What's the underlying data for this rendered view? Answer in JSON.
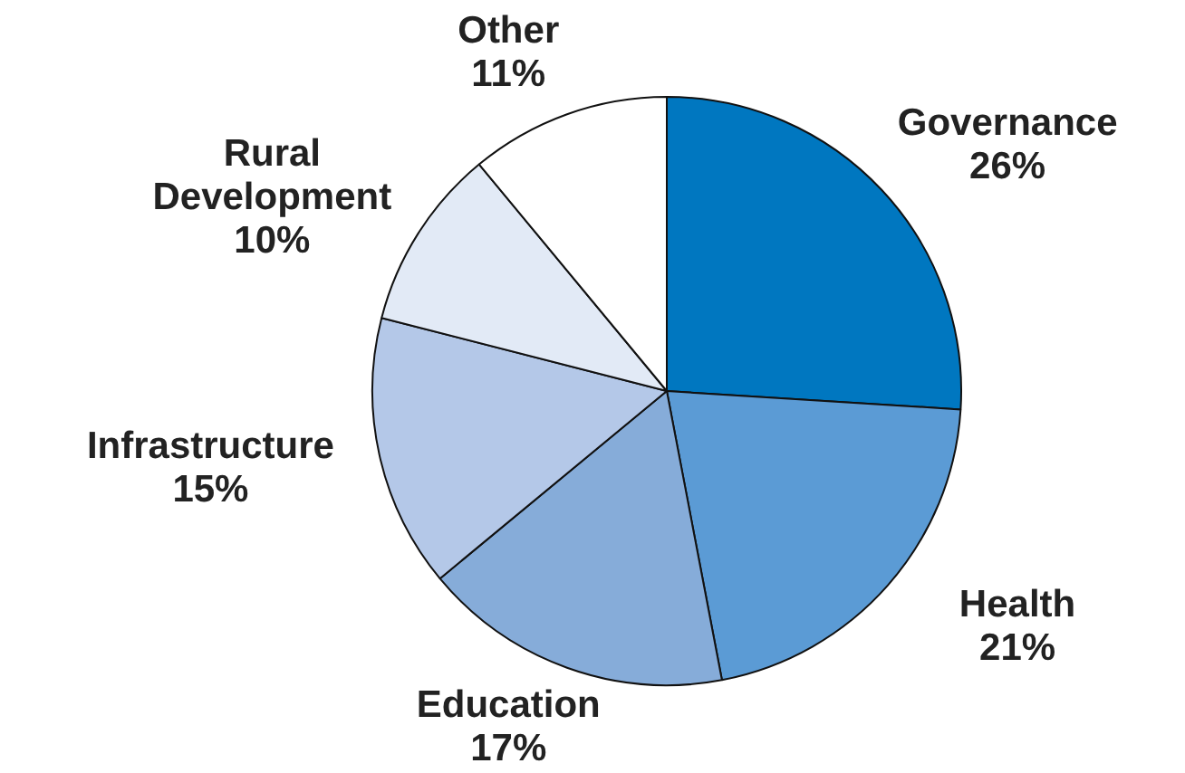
{
  "chart_data": {
    "type": "pie",
    "categories": [
      "Governance",
      "Health",
      "Education",
      "Infrastructure",
      "Rural Development",
      "Other"
    ],
    "values": [
      26,
      21,
      17,
      15,
      10,
      11
    ],
    "value_labels": [
      "26%",
      "21%",
      "17%",
      "15%",
      "10%",
      "11%"
    ],
    "colors": [
      "#0077c0",
      "#5b9bd5",
      "#86acd9",
      "#b4c8e8",
      "#e2eaf6",
      "#ffffff"
    ],
    "legend": false
  }
}
